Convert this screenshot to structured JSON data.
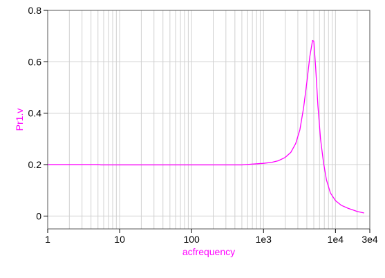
{
  "chart_data": {
    "type": "line",
    "xscale": "log",
    "xlabel": "acfrequency",
    "ylabel": "Pr1.v",
    "xlim": [
      1,
      30000
    ],
    "ylim": [
      -0.05,
      0.8
    ],
    "grid": true,
    "x_ticks": [
      1,
      10,
      100,
      1000,
      10000,
      30000
    ],
    "x_tick_labels": [
      "1",
      "10",
      "100",
      "1e3",
      "1e4",
      "3e4"
    ],
    "y_ticks": [
      0,
      0.2,
      0.4,
      0.6,
      0.8
    ],
    "y_tick_labels": [
      "0",
      "0.2",
      "0.4",
      "0.6",
      "0.8"
    ],
    "series": [
      {
        "color": "#ff00ff",
        "points": [
          [
            1,
            0.2
          ],
          [
            2,
            0.2
          ],
          [
            5,
            0.2
          ],
          [
            5.5,
            0.199
          ],
          [
            10,
            0.199
          ],
          [
            30,
            0.199
          ],
          [
            100,
            0.199
          ],
          [
            300,
            0.199
          ],
          [
            500,
            0.199
          ],
          [
            700,
            0.202
          ],
          [
            1000,
            0.205
          ],
          [
            1300,
            0.209
          ],
          [
            1600,
            0.215
          ],
          [
            2000,
            0.228
          ],
          [
            2400,
            0.248
          ],
          [
            2800,
            0.282
          ],
          [
            3200,
            0.335
          ],
          [
            3600,
            0.42
          ],
          [
            4000,
            0.52
          ],
          [
            4400,
            0.62
          ],
          [
            4800,
            0.683
          ],
          [
            5000,
            0.68
          ],
          [
            5300,
            0.58
          ],
          [
            5700,
            0.43
          ],
          [
            6200,
            0.3
          ],
          [
            6800,
            0.21
          ],
          [
            7500,
            0.14
          ],
          [
            8500,
            0.09
          ],
          [
            10000,
            0.06
          ],
          [
            12000,
            0.042
          ],
          [
            15000,
            0.03
          ],
          [
            20000,
            0.018
          ],
          [
            25000,
            0.012
          ]
        ]
      }
    ]
  }
}
